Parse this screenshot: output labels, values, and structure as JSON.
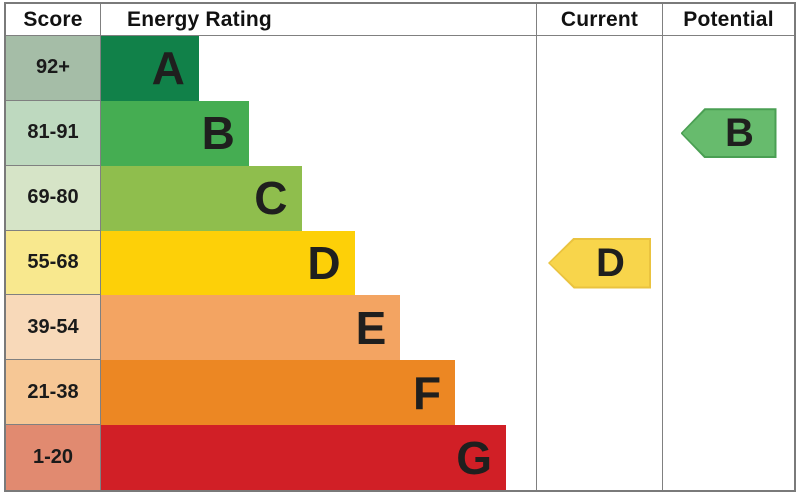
{
  "header": {
    "score": "Score",
    "energy_rating": "Energy Rating",
    "current": "Current",
    "potential": "Potential"
  },
  "chart_data": {
    "type": "bar",
    "title": "Energy Rating",
    "columns": [
      "Score",
      "Energy Rating",
      "Current",
      "Potential"
    ],
    "bands": [
      {
        "letter": "A",
        "score_range": "92+",
        "width_pct": 22.5,
        "bar_color": "#118149",
        "score_bg": "#a5bda7"
      },
      {
        "letter": "B",
        "score_range": "81-91",
        "width_pct": 34.0,
        "bar_color": "#45ad52",
        "score_bg": "#bed9bf"
      },
      {
        "letter": "C",
        "score_range": "69-80",
        "width_pct": 46.1,
        "bar_color": "#8fbe4d",
        "score_bg": "#d6e4c7"
      },
      {
        "letter": "D",
        "score_range": "55-68",
        "width_pct": 58.3,
        "bar_color": "#fdd008",
        "score_bg": "#f8e88e"
      },
      {
        "letter": "E",
        "score_range": "39-54",
        "width_pct": 68.8,
        "bar_color": "#f3a462",
        "score_bg": "#f8d9b9"
      },
      {
        "letter": "F",
        "score_range": "21-38",
        "width_pct": 81.4,
        "bar_color": "#ec8723",
        "score_bg": "#f6c795"
      },
      {
        "letter": "G",
        "score_range": "1-20",
        "width_pct": 93.1,
        "bar_color": "#d11f26",
        "score_bg": "#e18a70"
      }
    ],
    "current": {
      "rating": "D",
      "band_index": 3,
      "arrow_color": "#f8d54b",
      "arrow_border": "#eac33f",
      "arrow_w": 103,
      "arrow_h": 51
    },
    "potential": {
      "rating": "B",
      "band_index": 1,
      "arrow_color": "#67bb6d",
      "arrow_border": "#4a9f53",
      "arrow_w": 96,
      "arrow_h": 50
    }
  }
}
